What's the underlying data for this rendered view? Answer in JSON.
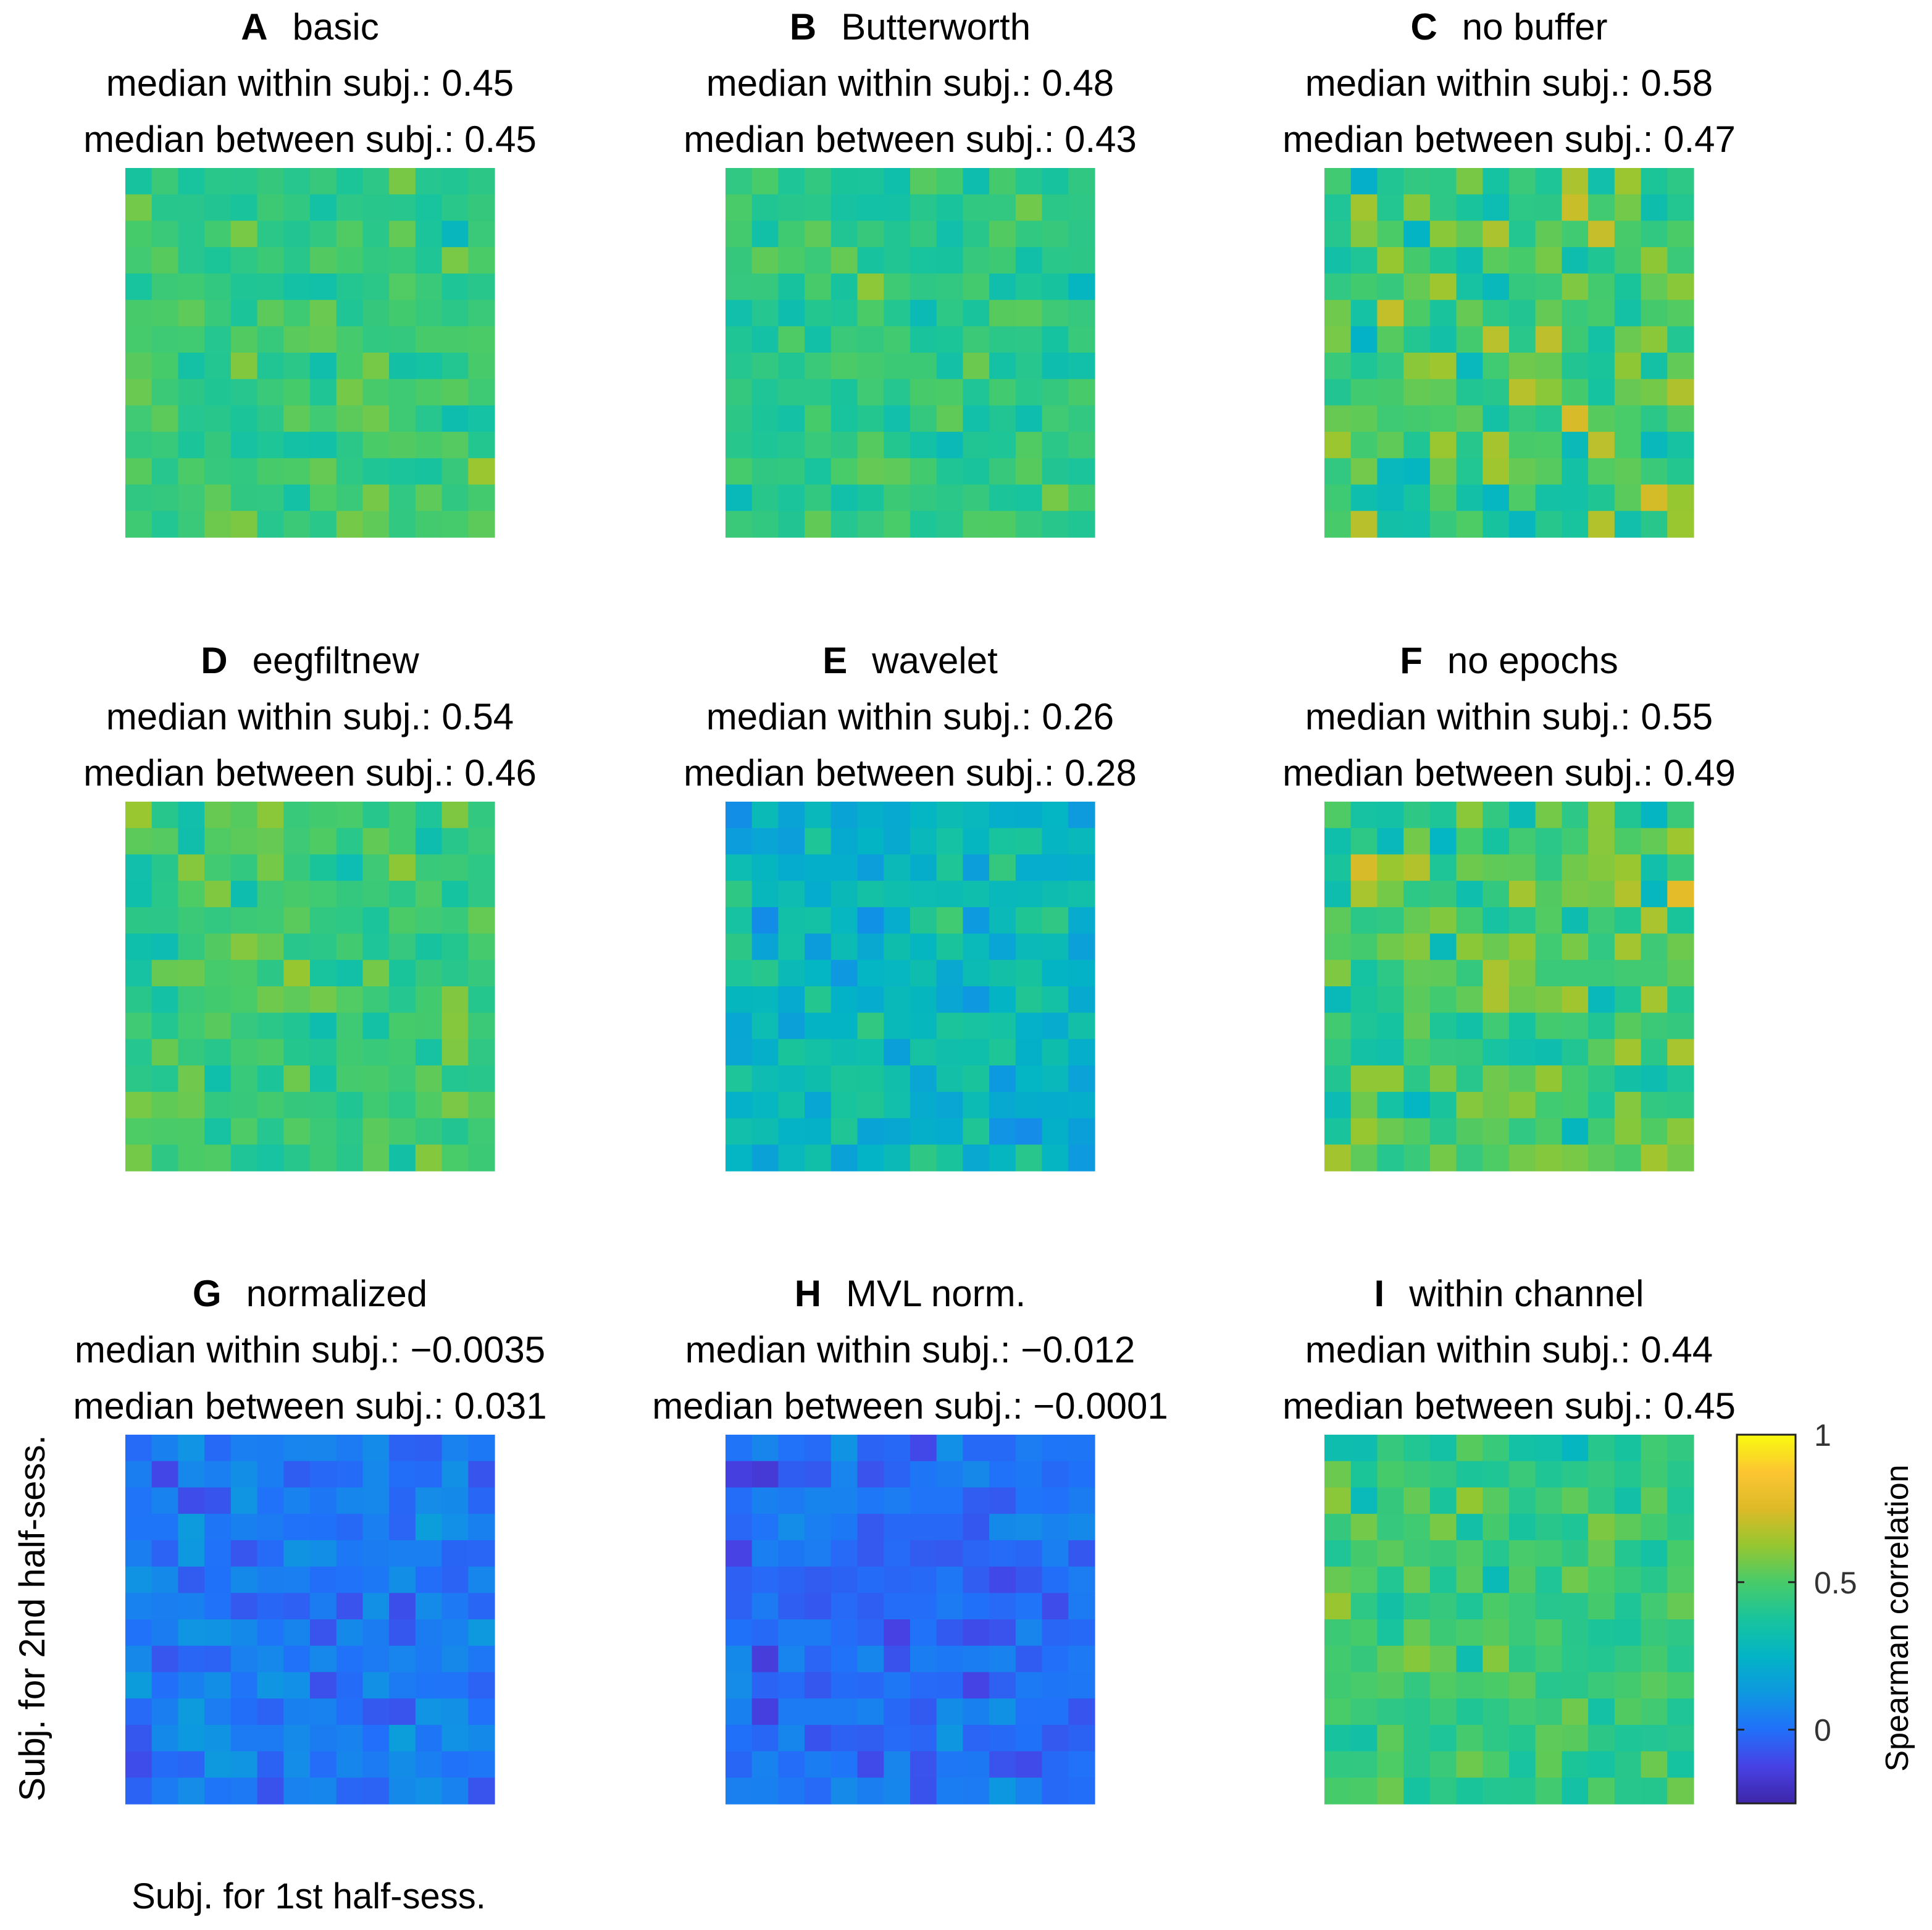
{
  "chart_data": {
    "type": "heatmap",
    "xlabel": "Subj. for 1st half-sess.",
    "ylabel": "Subj. for 2nd half-sess.",
    "colorbar": {
      "label": "Spearman correlation",
      "range": [
        -0.25,
        1
      ],
      "ticks": [
        {
          "value": 0,
          "label": "0"
        },
        {
          "value": 0.5,
          "label": "0.5"
        },
        {
          "value": 1,
          "label": "1"
        }
      ],
      "colormap": "parula"
    },
    "grid_size": 14,
    "panels": [
      {
        "letter": "A",
        "name": "basic",
        "within_label": "median within subj.: 0.45",
        "between_label": "median between subj.: 0.45",
        "within": 0.45,
        "between": 0.45,
        "spread": 0.12,
        "seed": 11
      },
      {
        "letter": "B",
        "name": "Butterworth",
        "within_label": "median within subj.: 0.48",
        "between_label": "median between subj.: 0.43",
        "within": 0.48,
        "between": 0.43,
        "spread": 0.12,
        "seed": 23
      },
      {
        "letter": "C",
        "name": "no buffer",
        "within_label": "median within subj.: 0.58",
        "between_label": "median between subj.: 0.47",
        "within": 0.58,
        "between": 0.47,
        "spread": 0.2,
        "seed": 37
      },
      {
        "letter": "D",
        "name": "eegfiltnew",
        "within_label": "median within subj.: 0.54",
        "between_label": "median between subj.: 0.46",
        "within": 0.54,
        "between": 0.46,
        "spread": 0.13,
        "seed": 41
      },
      {
        "letter": "E",
        "name": "wavelet",
        "within_label": "median within subj.: 0.26",
        "between_label": "median between subj.: 0.28",
        "within": 0.26,
        "between": 0.28,
        "spread": 0.15,
        "seed": 53
      },
      {
        "letter": "F",
        "name": "no epochs",
        "within_label": "median within subj.: 0.55",
        "between_label": "median between subj.: 0.49",
        "within": 0.55,
        "between": 0.49,
        "spread": 0.2,
        "seed": 67
      },
      {
        "letter": "G",
        "name": "normalized",
        "within_label": "median within subj.: −0.0035",
        "between_label": "median between subj.: 0.031",
        "within": -0.0035,
        "between": 0.031,
        "spread": 0.1,
        "seed": 71
      },
      {
        "letter": "H",
        "name": "MVL norm.",
        "within_label": "median within subj.: −0.012",
        "between_label": "median between subj.: −0.0001",
        "within": -0.012,
        "between": -0.0001,
        "spread": 0.1,
        "seed": 83
      },
      {
        "letter": "I",
        "name": "within channel",
        "within_label": "median within subj.: 0.44",
        "between_label": "median between subj.: 0.45",
        "within": 0.44,
        "between": 0.45,
        "spread": 0.12,
        "seed": 97
      }
    ]
  }
}
